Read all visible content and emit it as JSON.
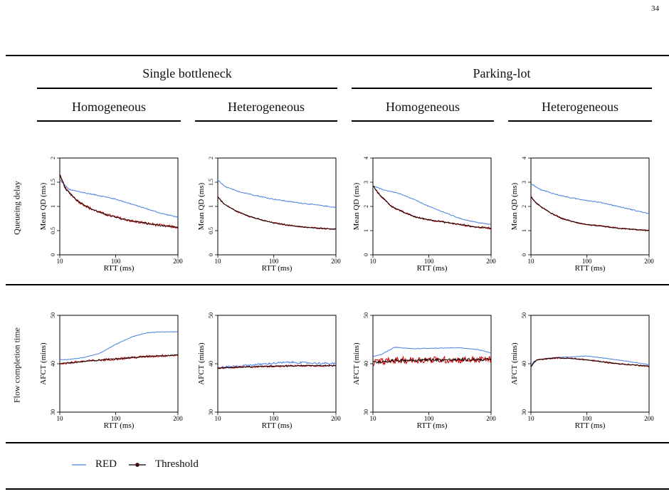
{
  "page_number": "34",
  "headers": {
    "groups": [
      "Single bottleneck",
      "Parking-lot"
    ],
    "subgroups": [
      "Homogeneous",
      "Heterogeneous",
      "Homogeneous",
      "Heterogeneous"
    ]
  },
  "row_labels": [
    "Queueing delay",
    "Flow completion time"
  ],
  "legend": [
    {
      "label": "RED",
      "color": "#4a7fe0"
    },
    {
      "label": "Threshold",
      "color": "#000000"
    }
  ],
  "colors": {
    "red_series": "#4a7fe0",
    "threshold_line": "#000000",
    "threshold_noise": "#d40000"
  },
  "chart_data": [
    {
      "type": "line",
      "panel": "Single bottleneck / Homogeneous",
      "xlabel": "RTT (ms)",
      "ylabel": "Mean QD (ms)",
      "xlim": [
        10,
        200
      ],
      "ylim": [
        0,
        2
      ],
      "xticks": [
        10,
        100,
        200
      ],
      "yticks": [
        0,
        0.5,
        1,
        1.5,
        2
      ],
      "ytick_labels": [
        "0",
        "0.5",
        "1",
        "1.5",
        "2"
      ],
      "series": [
        {
          "name": "RED",
          "x": [
            10,
            25,
            50,
            75,
            100,
            125,
            150,
            175,
            200
          ],
          "y": [
            1.55,
            1.35,
            1.28,
            1.22,
            1.15,
            1.05,
            0.95,
            0.85,
            0.78
          ],
          "noise": 0.01
        },
        {
          "name": "Threshold",
          "x": [
            10,
            20,
            40,
            60,
            80,
            100,
            125,
            150,
            175,
            200
          ],
          "y": [
            1.65,
            1.35,
            1.1,
            0.95,
            0.85,
            0.78,
            0.7,
            0.65,
            0.6,
            0.57
          ],
          "noise": 0.03
        }
      ]
    },
    {
      "type": "line",
      "panel": "Single bottleneck / Heterogeneous",
      "xlabel": "RTT (ms)",
      "ylabel": "Mean QD (ms)",
      "xlim": [
        10,
        200
      ],
      "ylim": [
        0,
        2
      ],
      "xticks": [
        10,
        100,
        200
      ],
      "yticks": [
        0,
        0.5,
        1,
        1.5,
        2
      ],
      "ytick_labels": [
        "0",
        "0.5",
        "1",
        "1.5",
        "2"
      ],
      "series": [
        {
          "name": "RED",
          "x": [
            10,
            20,
            40,
            60,
            80,
            100,
            125,
            150,
            175,
            200
          ],
          "y": [
            1.55,
            1.42,
            1.32,
            1.26,
            1.2,
            1.15,
            1.1,
            1.06,
            1.02,
            0.98
          ],
          "noise": 0.01
        },
        {
          "name": "Threshold",
          "x": [
            10,
            20,
            40,
            60,
            80,
            100,
            125,
            150,
            175,
            200
          ],
          "y": [
            1.2,
            1.05,
            0.9,
            0.8,
            0.72,
            0.66,
            0.61,
            0.57,
            0.55,
            0.53
          ],
          "noise": 0.015
        }
      ]
    },
    {
      "type": "line",
      "panel": "Parking-lot / Homogeneous",
      "xlabel": "RTT (ms)",
      "ylabel": "Mean QD (ms)",
      "xlim": [
        10,
        200
      ],
      "ylim": [
        0,
        4
      ],
      "xticks": [
        10,
        100,
        200
      ],
      "yticks": [
        0,
        1,
        2,
        3,
        4
      ],
      "ytick_labels": [
        "0",
        "1",
        "2",
        "3",
        "4"
      ],
      "series": [
        {
          "name": "RED",
          "x": [
            10,
            25,
            50,
            75,
            100,
            125,
            150,
            175,
            200
          ],
          "y": [
            2.85,
            2.7,
            2.55,
            2.3,
            2.0,
            1.75,
            1.5,
            1.35,
            1.25
          ],
          "noise": 0.015
        },
        {
          "name": "Threshold",
          "x": [
            10,
            20,
            40,
            60,
            80,
            100,
            125,
            150,
            175,
            200
          ],
          "y": [
            2.85,
            2.5,
            2.0,
            1.75,
            1.55,
            1.45,
            1.35,
            1.25,
            1.15,
            1.1
          ],
          "noise": 0.04
        }
      ]
    },
    {
      "type": "line",
      "panel": "Parking-lot / Heterogeneous",
      "xlabel": "RTT (ms)",
      "ylabel": "Mean QD (ms)",
      "xlim": [
        10,
        200
      ],
      "ylim": [
        0,
        4
      ],
      "xticks": [
        10,
        100,
        200
      ],
      "yticks": [
        0,
        1,
        2,
        3,
        4
      ],
      "ytick_labels": [
        "0",
        "1",
        "2",
        "3",
        "4"
      ],
      "series": [
        {
          "name": "RED",
          "x": [
            10,
            25,
            50,
            75,
            100,
            125,
            150,
            175,
            200
          ],
          "y": [
            2.95,
            2.7,
            2.5,
            2.35,
            2.25,
            2.15,
            2.0,
            1.85,
            1.7
          ],
          "noise": 0.02
        },
        {
          "name": "Threshold",
          "x": [
            10,
            20,
            40,
            60,
            80,
            100,
            125,
            150,
            175,
            200
          ],
          "y": [
            2.4,
            2.1,
            1.75,
            1.5,
            1.35,
            1.25,
            1.18,
            1.1,
            1.05,
            1.0
          ],
          "noise": 0.03
        }
      ]
    },
    {
      "type": "line",
      "panel": "Single bottleneck / Homogeneous",
      "xlabel": "RTT (ms)",
      "ylabel": "AFCT (mins)",
      "xlim": [
        10,
        200
      ],
      "ylim": [
        30,
        50
      ],
      "xticks": [
        10,
        100,
        200
      ],
      "yticks": [
        30,
        40,
        50
      ],
      "ytick_labels": [
        "30",
        "40",
        "50"
      ],
      "series": [
        {
          "name": "RED",
          "x": [
            10,
            25,
            50,
            75,
            100,
            125,
            150,
            175,
            200
          ],
          "y": [
            40.8,
            40.9,
            41.3,
            42.2,
            44.0,
            45.5,
            46.4,
            46.6,
            46.6
          ],
          "noise": 0.05
        },
        {
          "name": "Threshold",
          "x": [
            10,
            50,
            100,
            150,
            200
          ],
          "y": [
            40.0,
            40.5,
            41.0,
            41.5,
            41.8
          ],
          "noise": 0.25
        }
      ]
    },
    {
      "type": "line",
      "panel": "Single bottleneck / Heterogeneous",
      "xlabel": "RTT (ms)",
      "ylabel": "AFCT (mins)",
      "xlim": [
        10,
        200
      ],
      "ylim": [
        30,
        50
      ],
      "xticks": [
        10,
        100,
        200
      ],
      "yticks": [
        30,
        40,
        50
      ],
      "ytick_labels": [
        "30",
        "40",
        "50"
      ],
      "series": [
        {
          "name": "RED",
          "x": [
            10,
            50,
            100,
            125,
            150,
            200
          ],
          "y": [
            39.2,
            39.6,
            40.1,
            40.3,
            40.2,
            40.0
          ],
          "noise": 0.2
        },
        {
          "name": "Threshold",
          "x": [
            10,
            50,
            100,
            150,
            200
          ],
          "y": [
            39.1,
            39.3,
            39.5,
            39.6,
            39.6
          ],
          "noise": 0.2
        }
      ]
    },
    {
      "type": "line",
      "panel": "Parking-lot / Homogeneous",
      "xlabel": "RTT (ms)",
      "ylabel": "AFCT (mins)",
      "xlim": [
        10,
        200
      ],
      "ylim": [
        30,
        50
      ],
      "xticks": [
        10,
        100,
        200
      ],
      "yticks": [
        30,
        40,
        50
      ],
      "ytick_labels": [
        "30",
        "40",
        "50"
      ],
      "series": [
        {
          "name": "RED",
          "x": [
            10,
            25,
            45,
            75,
            100,
            150,
            180,
            200
          ],
          "y": [
            41.5,
            42.0,
            43.4,
            43.1,
            43.2,
            43.3,
            42.9,
            42.2
          ],
          "noise": 0.05
        },
        {
          "name": "Threshold",
          "x": [
            10,
            50,
            100,
            150,
            200
          ],
          "y": [
            40.3,
            40.7,
            40.8,
            40.8,
            40.9
          ],
          "noise": 0.7
        }
      ]
    },
    {
      "type": "line",
      "panel": "Parking-lot / Heterogeneous",
      "xlabel": "RTT (ms)",
      "ylabel": "AFCT (mins)",
      "xlim": [
        10,
        200
      ],
      "ylim": [
        30,
        50
      ],
      "xticks": [
        10,
        100,
        200
      ],
      "yticks": [
        30,
        40,
        50
      ],
      "ytick_labels": [
        "30",
        "40",
        "50"
      ],
      "series": [
        {
          "name": "RED",
          "x": [
            10,
            15,
            20,
            50,
            75,
            100,
            125,
            150,
            200
          ],
          "y": [
            39.5,
            40.5,
            40.8,
            41.3,
            41.4,
            41.6,
            41.2,
            40.8,
            39.8
          ],
          "noise": 0.05
        },
        {
          "name": "Threshold",
          "x": [
            10,
            15,
            20,
            50,
            75,
            100,
            125,
            150,
            200
          ],
          "y": [
            39.3,
            40.3,
            40.8,
            41.2,
            41.1,
            40.8,
            40.4,
            40.0,
            39.5
          ],
          "noise": 0.15
        }
      ]
    }
  ]
}
